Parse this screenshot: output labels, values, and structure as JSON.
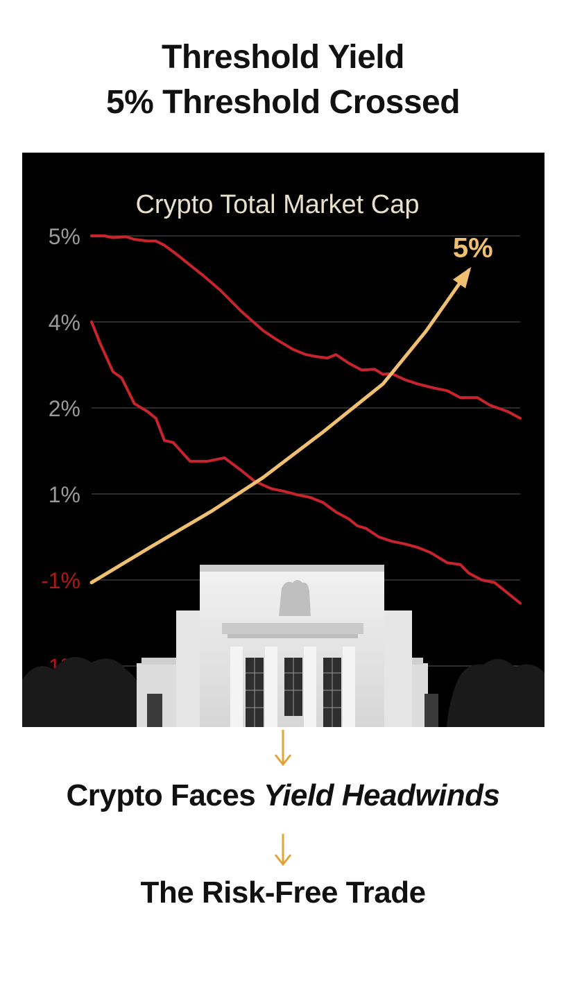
{
  "headline": {
    "line1": "Threshold Yield",
    "line2": "5% Threshold Crossed"
  },
  "captions": {
    "first_plain": "Crypto Faces ",
    "first_emphasis": "Yield Headwinds",
    "second": "The Risk-Free Trade"
  },
  "chart_data": {
    "type": "line",
    "title": "Crypto Total Market Cap",
    "y_ticks": [
      "5%",
      "4%",
      "2%",
      "1%",
      "-1%",
      "-1%"
    ],
    "y_tick_colors": [
      "#9a9a9a",
      "#9a9a9a",
      "#9a9a9a",
      "#9a9a9a",
      "#b01818",
      "#b01818"
    ],
    "y_tick_positions": [
      5,
      4,
      3,
      2,
      1,
      0
    ],
    "ylim": [
      0,
      5
    ],
    "xlim": [
      0,
      100
    ],
    "grid": true,
    "series": [
      {
        "color": "#c8242c",
        "x": [
          0,
          3,
          5,
          8,
          10,
          13,
          15,
          17,
          20,
          23,
          26,
          30,
          35,
          40,
          43,
          47,
          50,
          52,
          55,
          57,
          60,
          63,
          66,
          68,
          70,
          73,
          76,
          80,
          83,
          86,
          90,
          93,
          97,
          100
        ],
        "values": [
          5.0,
          5.0,
          4.98,
          4.99,
          4.96,
          4.94,
          4.94,
          4.89,
          4.78,
          4.66,
          4.54,
          4.37,
          4.12,
          3.9,
          3.8,
          3.68,
          3.62,
          3.6,
          3.58,
          3.62,
          3.52,
          3.44,
          3.45,
          3.39,
          3.4,
          3.33,
          3.28,
          3.23,
          3.2,
          3.12,
          3.12,
          3.03,
          2.96,
          2.88
        ]
      },
      {
        "color": "#c8242c",
        "x": [
          0,
          2,
          5,
          7,
          10,
          13,
          15,
          17,
          19,
          23,
          27,
          31,
          35,
          38,
          42,
          45,
          48,
          51,
          54,
          57,
          60,
          62,
          64,
          67,
          70,
          73,
          76,
          79,
          83,
          86,
          88,
          91,
          94,
          97,
          100
        ],
        "values": [
          4.0,
          3.75,
          3.42,
          3.35,
          3.05,
          2.96,
          2.88,
          2.62,
          2.6,
          2.38,
          2.38,
          2.42,
          2.27,
          2.15,
          2.06,
          2.03,
          1.99,
          1.96,
          1.9,
          1.79,
          1.71,
          1.63,
          1.6,
          1.5,
          1.45,
          1.42,
          1.38,
          1.32,
          1.2,
          1.18,
          1.08,
          1.0,
          0.97,
          0.85,
          0.73
        ]
      },
      {
        "color": "#f0c070",
        "x": [
          0,
          14,
          28,
          40,
          54,
          68,
          78,
          88
        ],
        "values": [
          0.97,
          1.39,
          1.8,
          2.19,
          2.72,
          3.28,
          3.89,
          4.6
        ]
      }
    ],
    "annotations": [
      {
        "text": "5%",
        "color": "#f0c070",
        "x": 88,
        "y": 4.85
      }
    ]
  },
  "colors": {
    "panel_bg": "#000000",
    "grid": "#3a3a3a",
    "title": "#e8dfcc",
    "flow_arrow": "#e0a53a",
    "building": "#e9e9e9"
  }
}
